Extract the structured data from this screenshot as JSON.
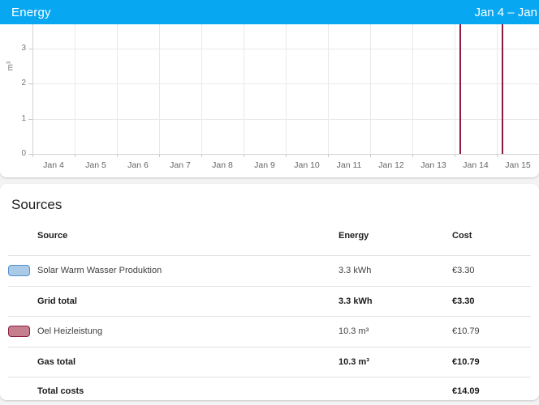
{
  "header": {
    "title": "Energy",
    "date_range": "Jan 4 – Jan"
  },
  "colors": {
    "header_bg": "#07a7f2",
    "bar_fill": "#c67f8e",
    "bar_border": "#8c1c3f",
    "solar_swatch_fill": "#a9cbe8",
    "solar_swatch_border": "#5191ce",
    "gas_swatch_fill": "#c67f8e",
    "gas_swatch_border": "#8c1c3f"
  },
  "chart_data": {
    "type": "bar",
    "title": "",
    "ylabel": "m³",
    "x": [
      "Jan 4",
      "Jan 5",
      "Jan 6",
      "Jan 7",
      "Jan 8",
      "Jan 9",
      "Jan 10",
      "Jan 11",
      "Jan 12",
      "Jan 13",
      "Jan 14",
      "Jan 15"
    ],
    "yticks": [
      0,
      1,
      2,
      3
    ],
    "ylim": [
      0,
      3.7
    ],
    "grid": true,
    "legend": "none",
    "series": [
      {
        "name": "Oel Heizleistung",
        "unit": "m³",
        "values": [
          0,
          0,
          0,
          0,
          0,
          0,
          0,
          0,
          0,
          0,
          5.15,
          5.15
        ],
        "color": "#c67f8e",
        "border_color": "#8c1c3f",
        "bars_clipped_at_visible_top": true
      }
    ]
  },
  "sources": {
    "heading": "Sources",
    "columns": [
      "Source",
      "Energy",
      "Cost"
    ],
    "rows": [
      {
        "source": "Solar Warm Wasser Produktion",
        "energy": "3.3 kWh",
        "cost": "€3.30"
      },
      {
        "source": "Grid total",
        "energy": "3.3 kWh",
        "cost": "€3.30"
      },
      {
        "source": "Oel Heizleistung",
        "energy": "10.3 m³",
        "cost": "€10.79"
      },
      {
        "source": "Gas total",
        "energy": "10.3 m³",
        "cost": "€10.79"
      },
      {
        "source": "Total costs",
        "energy": "",
        "cost": "€14.09"
      }
    ]
  }
}
